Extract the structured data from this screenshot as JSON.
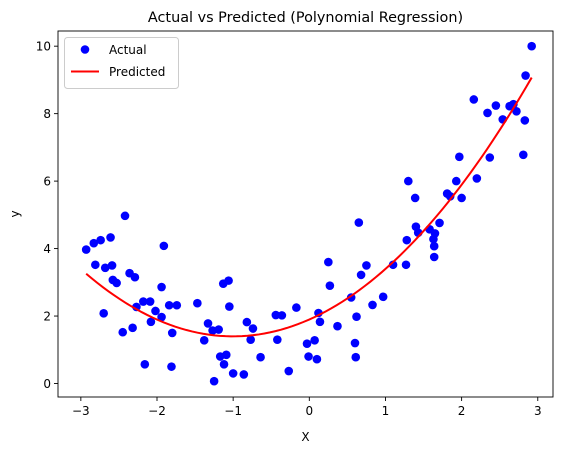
{
  "chart_data": {
    "type": "scatter",
    "title": "Actual vs Predicted (Polynomial Regression)",
    "xlabel": "X",
    "ylabel": "y",
    "xlim": [
      -3.3,
      3.2
    ],
    "ylim": [
      -0.4,
      10.45
    ],
    "x_ticks": [
      -3,
      -2,
      -1,
      0,
      1,
      2,
      3
    ],
    "y_ticks": [
      0,
      2,
      4,
      6,
      8,
      10
    ],
    "x_tick_labels": [
      "−3",
      "−2",
      "−1",
      "0",
      "1",
      "2",
      "3"
    ],
    "y_tick_labels": [
      "0",
      "2",
      "4",
      "6",
      "8",
      "10"
    ],
    "legend": {
      "position": "top-left",
      "entries": [
        "Actual",
        "Predicted"
      ]
    },
    "grid": false,
    "series": [
      {
        "name": "Actual",
        "kind": "scatter",
        "color": "#0000ff",
        "points": [
          [
            -2.93,
            3.97
          ],
          [
            -2.83,
            4.16
          ],
          [
            -2.81,
            3.52
          ],
          [
            -2.74,
            4.25
          ],
          [
            -2.7,
            2.08
          ],
          [
            -2.68,
            3.43
          ],
          [
            -2.61,
            4.33
          ],
          [
            -2.59,
            3.5
          ],
          [
            -2.58,
            3.07
          ],
          [
            -2.53,
            2.98
          ],
          [
            -2.45,
            1.52
          ],
          [
            -2.42,
            4.97
          ],
          [
            -2.36,
            3.27
          ],
          [
            -2.32,
            1.65
          ],
          [
            -2.29,
            3.15
          ],
          [
            -2.27,
            2.27
          ],
          [
            -2.18,
            2.43
          ],
          [
            -2.16,
            0.57
          ],
          [
            -2.09,
            2.43
          ],
          [
            -2.08,
            1.83
          ],
          [
            -2.02,
            2.15
          ],
          [
            -1.94,
            2.86
          ],
          [
            -1.94,
            1.97
          ],
          [
            -1.91,
            4.08
          ],
          [
            -1.84,
            2.32
          ],
          [
            -1.81,
            0.5
          ],
          [
            -1.8,
            1.5
          ],
          [
            -1.74,
            2.32
          ],
          [
            -1.47,
            2.38
          ],
          [
            -1.38,
            1.28
          ],
          [
            -1.33,
            1.78
          ],
          [
            -1.27,
            1.57
          ],
          [
            -1.25,
            0.07
          ],
          [
            -1.19,
            1.6
          ],
          [
            -1.17,
            0.8
          ],
          [
            -1.13,
            2.96
          ],
          [
            -1.12,
            0.57
          ],
          [
            -1.09,
            0.85
          ],
          [
            -1.06,
            3.05
          ],
          [
            -1.05,
            2.28
          ],
          [
            -1.0,
            0.3
          ],
          [
            -0.86,
            0.27
          ],
          [
            -0.82,
            1.82
          ],
          [
            -0.77,
            1.3
          ],
          [
            -0.74,
            1.63
          ],
          [
            -0.64,
            0.78
          ],
          [
            -0.44,
            2.03
          ],
          [
            -0.42,
            1.3
          ],
          [
            -0.36,
            2.02
          ],
          [
            -0.27,
            0.37
          ],
          [
            -0.17,
            2.25
          ],
          [
            -0.03,
            1.18
          ],
          [
            -0.01,
            0.8
          ],
          [
            0.07,
            1.28
          ],
          [
            0.1,
            0.72
          ],
          [
            0.12,
            2.09
          ],
          [
            0.14,
            1.83
          ],
          [
            0.25,
            3.6
          ],
          [
            0.27,
            2.9
          ],
          [
            0.37,
            1.7
          ],
          [
            0.55,
            2.55
          ],
          [
            0.6,
            1.2
          ],
          [
            0.61,
            0.78
          ],
          [
            0.62,
            1.98
          ],
          [
            0.65,
            4.77
          ],
          [
            0.68,
            3.22
          ],
          [
            0.75,
            3.5
          ],
          [
            0.83,
            2.33
          ],
          [
            0.97,
            2.57
          ],
          [
            1.1,
            3.52
          ],
          [
            1.27,
            3.52
          ],
          [
            1.28,
            4.25
          ],
          [
            1.3,
            6.0
          ],
          [
            1.39,
            5.5
          ],
          [
            1.4,
            4.65
          ],
          [
            1.43,
            4.47
          ],
          [
            1.58,
            4.57
          ],
          [
            1.63,
            4.28
          ],
          [
            1.64,
            4.07
          ],
          [
            1.64,
            3.75
          ],
          [
            1.65,
            4.45
          ],
          [
            1.71,
            4.76
          ],
          [
            1.81,
            5.63
          ],
          [
            1.85,
            5.55
          ],
          [
            1.93,
            6.0
          ],
          [
            1.97,
            6.72
          ],
          [
            2.0,
            5.5
          ],
          [
            2.16,
            8.42
          ],
          [
            2.2,
            6.08
          ],
          [
            2.34,
            8.02
          ],
          [
            2.37,
            6.7
          ],
          [
            2.45,
            8.24
          ],
          [
            2.54,
            7.83
          ],
          [
            2.63,
            8.22
          ],
          [
            2.68,
            8.28
          ],
          [
            2.72,
            8.07
          ],
          [
            2.81,
            6.78
          ],
          [
            2.83,
            7.8
          ],
          [
            2.84,
            9.13
          ],
          [
            2.92,
            10.0
          ]
        ]
      },
      {
        "name": "Predicted",
        "kind": "line",
        "color": "#ff0000",
        "curve": "y = a*x^2 + b*x + c",
        "coefficients": {
          "a": 0.499,
          "b": 0.999,
          "c": 1.898
        },
        "x_range": [
          -2.93,
          2.92
        ]
      }
    ]
  }
}
